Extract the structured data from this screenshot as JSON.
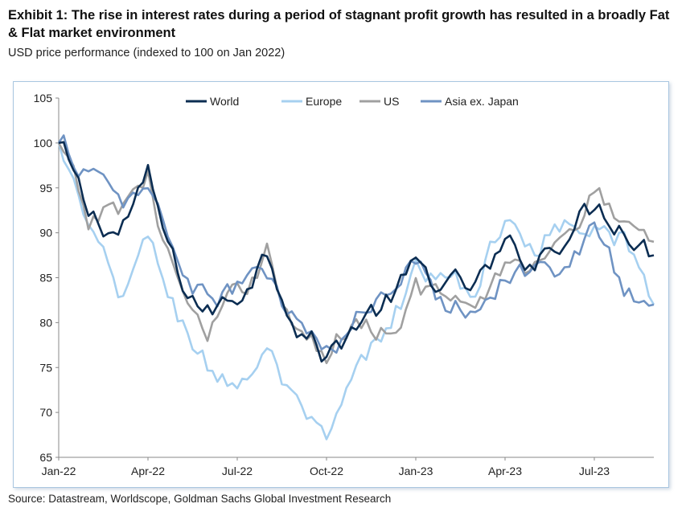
{
  "header": {
    "title": "Exhibit 1: The rise in interest rates during a period of stagnant profit growth has resulted in a broadly Fat & Flat market environment",
    "subtitle": "USD price performance (indexed to 100 on Jan 2022)"
  },
  "footer": {
    "source": "Source: Datastream, Worldscope, Goldman Sachs Global Investment Research"
  },
  "chart_data": {
    "type": "line",
    "title": "",
    "xlabel": "",
    "ylabel": "",
    "ylim": [
      65,
      105
    ],
    "yticks": [
      65,
      70,
      75,
      80,
      85,
      90,
      95,
      100,
      105
    ],
    "xlim": [
      "2022-01",
      "2023-09"
    ],
    "xticks": [
      "Jan-22",
      "Apr-22",
      "Jul-22",
      "Oct-22",
      "Jan-23",
      "Apr-23",
      "Jul-23"
    ],
    "grid": false,
    "legend": "top-center",
    "x": [
      "2022-01",
      "2022-02",
      "2022-03",
      "2022-04",
      "2022-05",
      "2022-06",
      "2022-07",
      "2022-08",
      "2022-09",
      "2022-10",
      "2022-11",
      "2022-12",
      "2023-01",
      "2023-02",
      "2023-03",
      "2023-04",
      "2023-05",
      "2023-06",
      "2023-07",
      "2023-08",
      "2023-09"
    ],
    "series": [
      {
        "name": "World",
        "color": "#0b2d52",
        "values": [
          100,
          92,
          90,
          96,
          85,
          81,
          83,
          88,
          80,
          76,
          80,
          82,
          86,
          84,
          84,
          88,
          87,
          90,
          93,
          91,
          87.5
        ]
      },
      {
        "name": "Europe",
        "color": "#a6d0f0",
        "values": [
          100,
          90,
          83,
          89,
          81,
          75,
          73,
          77,
          70,
          66,
          74,
          79,
          86,
          84,
          84,
          91,
          89,
          91,
          92,
          89,
          82
        ]
      },
      {
        "name": "US",
        "color": "#a0a0a0",
        "values": [
          100,
          91,
          93,
          96,
          84,
          78,
          83,
          88,
          79,
          76,
          81,
          79,
          84,
          83,
          80,
          87,
          86,
          91,
          94,
          92,
          89
        ]
      },
      {
        "name": "Asia ex. Japan",
        "color": "#6f93c3",
        "values": [
          100,
          97,
          93,
          95,
          87,
          82,
          84,
          85,
          80,
          76,
          80,
          84,
          88,
          82,
          82,
          85,
          86,
          86,
          90,
          84,
          82
        ]
      }
    ]
  }
}
